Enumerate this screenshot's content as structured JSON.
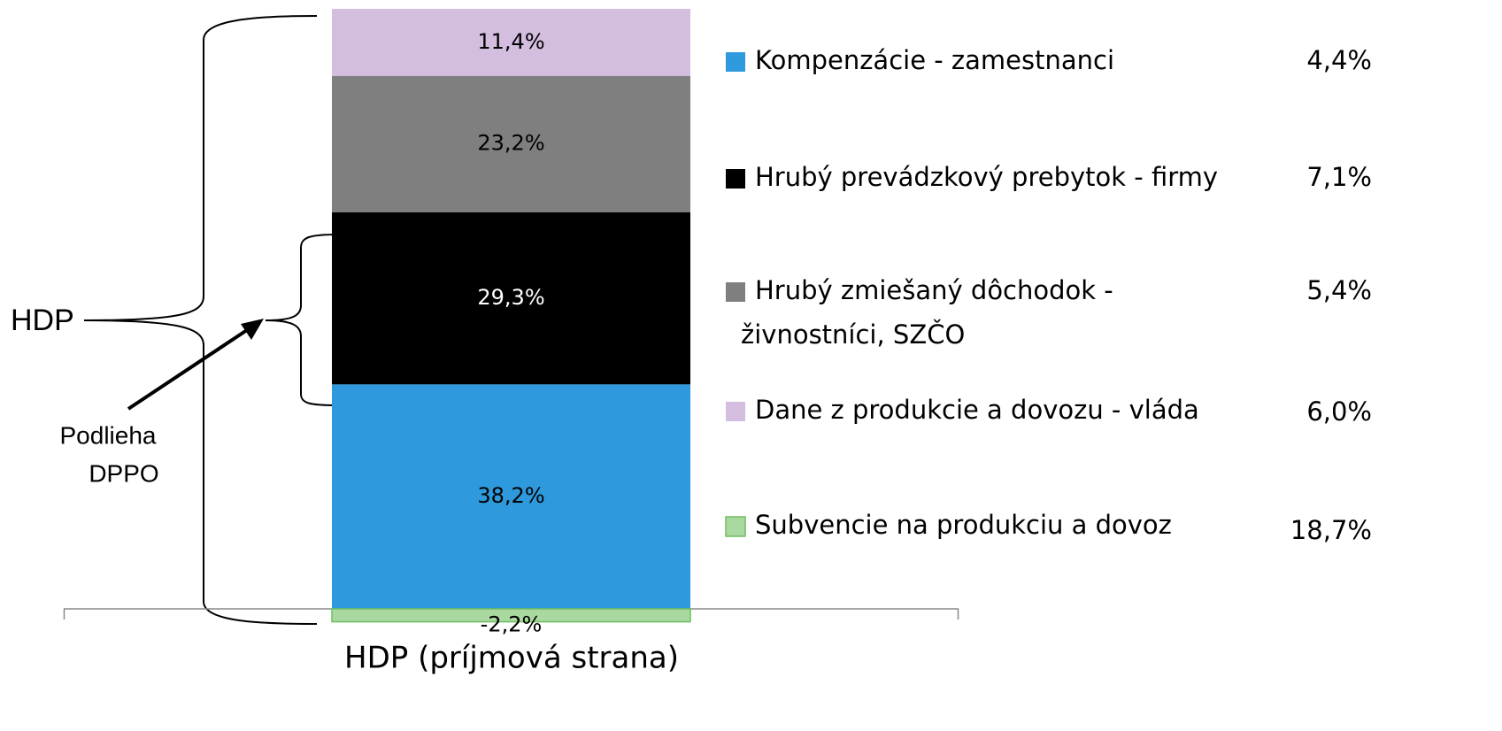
{
  "chart_data": {
    "type": "stacked_bar",
    "categories": [
      "HDP (príjmová strana)"
    ],
    "series": [
      {
        "name": "Kompenzácie - zamestnanci",
        "color": "#2e9add",
        "label_color": "#000000",
        "values": [
          38.2
        ],
        "value_labels": [
          "38,2%"
        ],
        "side_value": 4.4,
        "side_label": "4,4%"
      },
      {
        "name": "Hrubý prevádzkový prebytok - firmy",
        "color": "#000000",
        "label_color": "#ffffff",
        "values": [
          29.3
        ],
        "value_labels": [
          "29,3%"
        ],
        "side_value": 7.1,
        "side_label": "7,1%"
      },
      {
        "name": [
          "Hrubý zmiešaný dôchodok -",
          "živnostníci, SZČO"
        ],
        "color": "#7f7f7f",
        "label_color": "#000000",
        "values": [
          23.2
        ],
        "value_labels": [
          "23,2%"
        ],
        "side_value": 5.4,
        "side_label": "5,4%"
      },
      {
        "name": "Dane  z produkcie a dovozu - vláda",
        "color": "#d3bedf",
        "label_color": "#000000",
        "values": [
          11.4
        ],
        "value_labels": [
          "11,4%"
        ],
        "side_value": 6.0,
        "side_label": "6,0%"
      },
      {
        "name": "Subvencie na produkciu a dovoz",
        "color": "#a9d8a0",
        "label_color": "#000000",
        "values": [
          -2.2
        ],
        "value_labels": [
          "-2,2%"
        ],
        "side_value": 18.7,
        "side_label": "18,7%"
      }
    ],
    "annotations": {
      "total": "HDP",
      "taxed": [
        "Podlieha",
        "DPPO"
      ]
    }
  }
}
